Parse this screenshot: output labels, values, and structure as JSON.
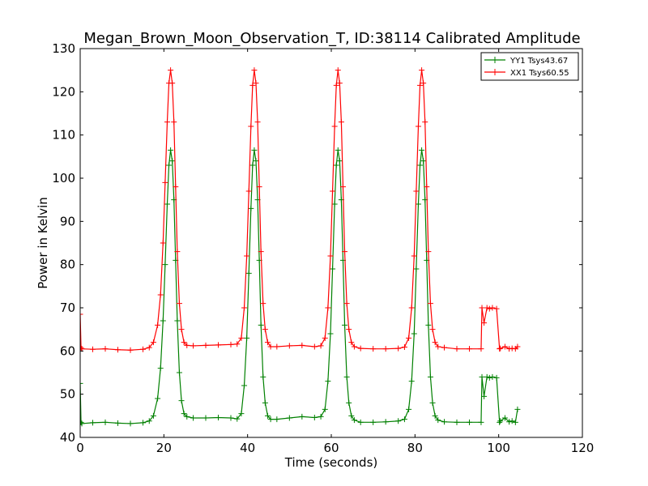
{
  "chart_data": {
    "type": "line",
    "title": "Megan_Brown_Moon_Observation_T, ID:38114 Calibrated Amplitude",
    "xlabel": "Time (seconds)",
    "ylabel": "Power in Kelvin",
    "xlim": [
      0,
      120
    ],
    "ylim": [
      40,
      130
    ],
    "xticks": [
      0,
      20,
      40,
      60,
      80,
      100,
      120
    ],
    "yticks": [
      40,
      50,
      60,
      70,
      80,
      90,
      100,
      110,
      120,
      130
    ],
    "grid": false,
    "legend_position": "top-right",
    "series": [
      {
        "name": "YY1 Tsys43.67",
        "color": "#008000",
        "marker": "plus",
        "x": [
          0.0,
          0.2,
          0.4,
          3,
          6,
          9,
          12,
          15,
          16.5,
          17.5,
          18.5,
          19.2,
          19.8,
          20.3,
          20.8,
          21.2,
          21.6,
          22.0,
          22.4,
          22.8,
          23.2,
          23.7,
          24.2,
          24.8,
          25.5,
          27,
          30,
          33,
          36,
          37.5,
          38.5,
          39.2,
          39.8,
          40.3,
          40.8,
          41.2,
          41.6,
          42.0,
          42.4,
          42.8,
          43.2,
          43.7,
          44.2,
          44.8,
          45.5,
          47,
          50,
          53,
          56,
          57.5,
          58.5,
          59.2,
          59.8,
          60.3,
          60.8,
          61.2,
          61.6,
          62.0,
          62.4,
          62.8,
          63.2,
          63.7,
          64.2,
          64.8,
          65.5,
          67,
          70,
          73,
          76,
          77.5,
          78.5,
          79.2,
          79.8,
          80.3,
          80.8,
          81.2,
          81.6,
          82.0,
          82.4,
          82.8,
          83.2,
          83.7,
          84.2,
          84.8,
          85.5,
          87,
          90,
          93,
          95.8,
          96.0,
          96.5,
          97.2,
          97.8,
          98.5,
          99.5,
          100.2,
          100.4,
          101.5,
          102.5,
          103.2,
          104.0,
          104.5
        ],
        "y": [
          52.5,
          43.5,
          43.2,
          43.4,
          43.5,
          43.3,
          43.2,
          43.4,
          43.8,
          45.0,
          49.0,
          56.0,
          67.0,
          80.0,
          94.0,
          103.0,
          106.5,
          104.0,
          95.0,
          81.0,
          67.0,
          55.0,
          48.5,
          45.5,
          44.8,
          44.5,
          44.5,
          44.6,
          44.5,
          44.3,
          45.5,
          52.0,
          63.0,
          78.0,
          93.0,
          103.0,
          106.5,
          104.0,
          95.0,
          81.0,
          66.0,
          54.0,
          48.0,
          45.0,
          44.2,
          44.2,
          44.5,
          44.8,
          44.6,
          44.8,
          46.5,
          53.0,
          64.0,
          79.0,
          94.0,
          103.0,
          106.5,
          104.0,
          95.0,
          81.0,
          66.0,
          54.0,
          48.0,
          45.0,
          44.0,
          43.5,
          43.5,
          43.6,
          43.8,
          44.2,
          46.5,
          53.0,
          64.0,
          79.0,
          94.0,
          103.0,
          106.5,
          104.0,
          95.0,
          81.0,
          66.0,
          54.0,
          48.0,
          45.0,
          44.0,
          43.6,
          43.5,
          43.5,
          43.5,
          54.0,
          49.5,
          54.0,
          53.8,
          54.0,
          53.8,
          43.5,
          43.8,
          44.5,
          43.6,
          43.8,
          43.5,
          46.5
        ]
      },
      {
        "name": "XX1 Tsys60.55",
        "color": "#ff0000",
        "marker": "plus",
        "x": [
          0.0,
          0.2,
          0.4,
          3,
          6,
          9,
          12,
          15,
          16.5,
          17.5,
          18.5,
          19.2,
          19.8,
          20.3,
          20.8,
          21.2,
          21.6,
          22.0,
          22.4,
          22.8,
          23.2,
          23.7,
          24.2,
          24.8,
          25.5,
          27,
          30,
          33,
          36,
          37.5,
          38.5,
          39.2,
          39.8,
          40.3,
          40.8,
          41.2,
          41.6,
          42.0,
          42.4,
          42.8,
          43.2,
          43.7,
          44.2,
          44.8,
          45.5,
          47,
          50,
          53,
          56,
          57.5,
          58.5,
          59.2,
          59.8,
          60.3,
          60.8,
          61.2,
          61.6,
          62.0,
          62.4,
          62.8,
          63.2,
          63.7,
          64.2,
          64.8,
          65.5,
          67,
          70,
          73,
          76,
          77.5,
          78.5,
          79.2,
          79.8,
          80.3,
          80.8,
          81.2,
          81.6,
          82.0,
          82.4,
          82.8,
          83.2,
          83.7,
          84.2,
          84.8,
          85.5,
          87,
          90,
          93,
          95.8,
          96.0,
          96.5,
          97.2,
          97.8,
          98.5,
          99.5,
          100.2,
          100.4,
          101.5,
          102.5,
          103.2,
          104.0,
          104.5
        ],
        "y": [
          68.5,
          60.8,
          60.5,
          60.4,
          60.5,
          60.3,
          60.2,
          60.4,
          60.8,
          62.0,
          66.0,
          73.0,
          85.0,
          99.0,
          113.0,
          122.0,
          125.0,
          122.0,
          113.0,
          98.0,
          83.0,
          71.0,
          65.0,
          62.0,
          61.3,
          61.2,
          61.3,
          61.4,
          61.5,
          61.6,
          63.0,
          70.0,
          82.0,
          97.0,
          112.0,
          121.5,
          125.0,
          122.0,
          113.0,
          98.0,
          83.0,
          71.0,
          65.0,
          62.0,
          61.0,
          61.0,
          61.2,
          61.3,
          61.0,
          61.2,
          63.0,
          70.0,
          82.0,
          97.0,
          112.0,
          121.5,
          125.0,
          122.0,
          113.0,
          98.0,
          83.0,
          71.0,
          65.0,
          62.0,
          61.0,
          60.6,
          60.5,
          60.5,
          60.6,
          60.9,
          63.0,
          70.0,
          82.0,
          97.0,
          112.0,
          121.5,
          125.0,
          122.0,
          113.0,
          98.0,
          83.0,
          71.0,
          65.0,
          62.0,
          61.0,
          60.8,
          60.5,
          60.5,
          60.5,
          70.0,
          66.5,
          70.0,
          69.8,
          70.0,
          69.8,
          60.5,
          60.6,
          61.0,
          60.5,
          60.6,
          60.5,
          61.0
        ]
      }
    ]
  }
}
